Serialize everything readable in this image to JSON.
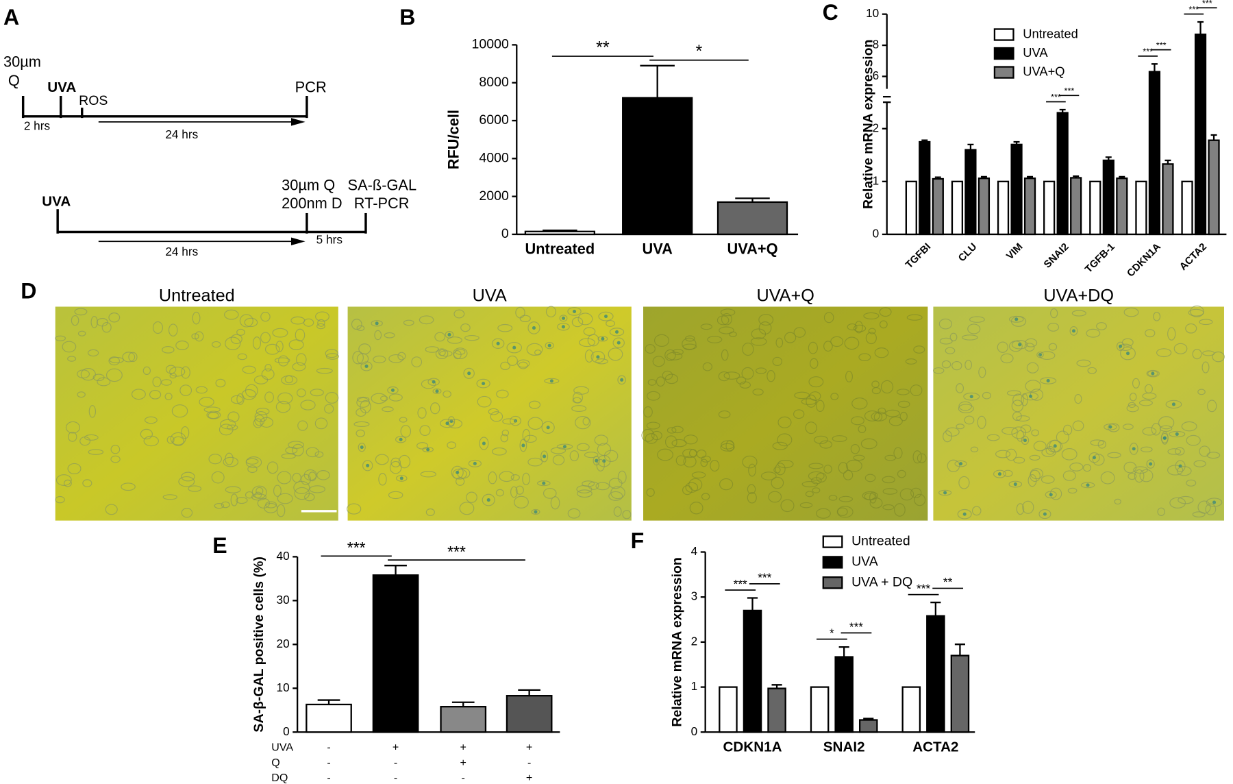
{
  "panel_labels": [
    "A",
    "B",
    "C",
    "D",
    "E",
    "F"
  ],
  "timeline": {
    "q_dose": "30µm",
    "q": "Q",
    "uva": "UVA",
    "ros": "ROS",
    "pcr": "PCR",
    "t1": "2 hrs",
    "t2": "24 hrs"
  },
  "timeline_2": {
    "uva": "UVA",
    "q": "30µm Q",
    "d": "200nm D",
    "sa": "SA-ß-GAL",
    "rt": "RT-PCR",
    "t1": "24 hrs",
    "t2": "5 hrs"
  },
  "micrographs": [
    "Untreated",
    "UVA",
    "UVA+Q",
    "UVA+DQ"
  ],
  "chart_data": [
    {
      "type": "bar",
      "ylabel": "RFU/cell",
      "categories": [
        "Untreated",
        "UVA",
        "UVA+Q"
      ],
      "values": [
        150,
        7200,
        1700
      ],
      "errors": [
        60,
        1700,
        200
      ],
      "colors": [
        "#ffffff",
        "#000000",
        "#666666"
      ],
      "ylim": [
        0,
        10000
      ],
      "yticks": [
        0,
        2000,
        4000,
        6000,
        8000,
        10000
      ],
      "significance": [
        {
          "from": 0,
          "to": 1,
          "label": "**"
        },
        {
          "from": 1,
          "to": 2,
          "label": "*"
        }
      ]
    },
    {
      "type": "grouped_bar",
      "ylabel": "Relative mRNA expression",
      "categories": [
        "TGFBI",
        "CLU",
        "VIM",
        "SNAI2",
        "TGFB-1",
        "CDKN1A",
        "ACTA2"
      ],
      "series": [
        {
          "name": "Untreated",
          "color": "#ffffff",
          "values": [
            1,
            1,
            1,
            1,
            1,
            1,
            1
          ]
        },
        {
          "name": "UVA",
          "color": "#000000",
          "values": [
            1.75,
            1.6,
            1.7,
            2.3,
            1.4,
            6.3,
            8.7
          ],
          "errors": [
            0.03,
            0.1,
            0.05,
            0.06,
            0.06,
            0.5,
            0.8
          ]
        },
        {
          "name": "UVA+Q",
          "color": "#808080",
          "values": [
            1.05,
            1.06,
            1.06,
            1.07,
            1.06,
            1.33,
            1.78
          ],
          "errors": [
            0.03,
            0.03,
            0.03,
            0.03,
            0.03,
            0.07,
            0.1
          ]
        }
      ],
      "ylim": [
        0,
        10
      ],
      "axis_break": [
        2.5,
        5.2
      ],
      "yticks": [
        0,
        1,
        2,
        6,
        8,
        10
      ],
      "significance": [
        {
          "category": 3,
          "from": 0,
          "to": 1,
          "label": "***"
        },
        {
          "category": 3,
          "from": 1,
          "to": 2,
          "label": "***"
        },
        {
          "category": 5,
          "from": 0,
          "to": 1,
          "label": "***"
        },
        {
          "category": 5,
          "from": 1,
          "to": 2,
          "label": "***"
        },
        {
          "category": 6,
          "from": 0,
          "to": 1,
          "label": "***"
        },
        {
          "category": 6,
          "from": 1,
          "to": 2,
          "label": "***"
        }
      ]
    },
    {
      "type": "bar",
      "ylabel": "SA-β-GAL positive cells (%)",
      "values": [
        6.3,
        35.8,
        5.8,
        8.3
      ],
      "errors": [
        1,
        2.2,
        1,
        1.3
      ],
      "colors": [
        "#ffffff",
        "#000000",
        "#888888",
        "#555555"
      ],
      "ylim": [
        0,
        40
      ],
      "yticks": [
        0,
        10,
        20,
        30,
        40
      ],
      "treatments": [
        {
          "name": "UVA",
          "marks": [
            "-",
            "+",
            "+",
            "+"
          ]
        },
        {
          "name": "Q",
          "marks": [
            "-",
            "-",
            "+",
            "-"
          ]
        },
        {
          "name": "DQ",
          "marks": [
            "-",
            "-",
            "-",
            "+"
          ]
        }
      ],
      "significance": [
        {
          "from": 0,
          "to": 1,
          "label": "***"
        },
        {
          "from": 1,
          "to": 3,
          "label": "***"
        }
      ]
    },
    {
      "type": "grouped_bar",
      "ylabel": "Relative mRNA expression",
      "categories": [
        "CDKN1A",
        "SNAI2",
        "ACTA2"
      ],
      "series": [
        {
          "name": "Untreated",
          "color": "#ffffff",
          "values": [
            1,
            1,
            1
          ]
        },
        {
          "name": "UVA",
          "color": "#000000",
          "values": [
            2.7,
            1.67,
            2.58
          ],
          "errors": [
            0.28,
            0.22,
            0.3
          ]
        },
        {
          "name": "UVA + DQ",
          "color": "#666666",
          "values": [
            0.97,
            0.27,
            1.7
          ],
          "errors": [
            0.08,
            0.03,
            0.25
          ]
        }
      ],
      "ylim": [
        0,
        4
      ],
      "yticks": [
        0,
        1,
        2,
        3,
        4
      ],
      "significance": [
        {
          "category": 0,
          "from": 0,
          "to": 1,
          "label": "***"
        },
        {
          "category": 0,
          "from": 1,
          "to": 2,
          "label": "***"
        },
        {
          "category": 1,
          "from": 0,
          "to": 1,
          "label": "*"
        },
        {
          "category": 1,
          "from": 1,
          "to": 2,
          "label": "***"
        },
        {
          "category": 2,
          "from": 0,
          "to": 1,
          "label": "***"
        },
        {
          "category": 2,
          "from": 1,
          "to": 2,
          "label": "**"
        }
      ]
    }
  ]
}
